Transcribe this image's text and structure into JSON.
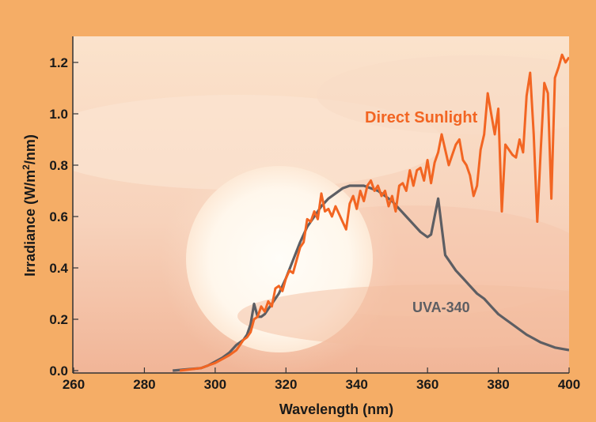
{
  "chart_data": {
    "type": "line",
    "title": "",
    "xlabel": "Wavelength (nm)",
    "ylabel_main": "Irradiance (W/m",
    "ylabel_sup": "2",
    "ylabel_tail": "/nm)",
    "xlim": [
      260,
      400
    ],
    "ylim": [
      0,
      1.3
    ],
    "x_ticks": [
      260,
      280,
      300,
      320,
      340,
      360,
      380,
      400
    ],
    "x_tick_labels": [
      "260",
      "280",
      "300",
      "320",
      "340",
      "360",
      "380",
      "400"
    ],
    "y_ticks": [
      0,
      0.2,
      0.4,
      0.6,
      0.8,
      1.0,
      1.2
    ],
    "y_tick_labels": [
      "0.0",
      "0.2",
      "0.4",
      "0.6",
      "0.8",
      "1.0",
      "1.2"
    ],
    "grid": false,
    "legend": "inline labels",
    "series": [
      {
        "name": "Direct Sunlight",
        "color": "#f26522",
        "x": [
          290,
          293,
          296,
          298,
          300,
          302,
          304,
          306,
          307,
          308,
          309,
          310,
          311,
          312,
          313,
          314,
          315,
          316,
          317,
          318,
          319,
          320,
          321,
          322,
          323,
          324,
          325,
          326,
          327,
          328,
          329,
          330,
          331,
          332,
          333,
          334,
          335,
          336,
          337,
          338,
          339,
          340,
          341,
          342,
          343,
          344,
          345,
          346,
          347,
          348,
          349,
          350,
          351,
          352,
          353,
          354,
          355,
          356,
          357,
          358,
          359,
          360,
          361,
          362,
          363,
          364,
          365,
          366,
          367,
          368,
          369,
          370,
          371,
          372,
          373,
          374,
          375,
          376,
          377,
          378,
          379,
          380,
          381,
          382,
          383,
          384,
          385,
          386,
          387,
          388,
          389,
          390,
          391,
          392,
          393,
          394,
          395,
          396,
          397,
          398,
          399,
          400
        ],
        "y": [
          0.0,
          0.005,
          0.01,
          0.02,
          0.03,
          0.045,
          0.06,
          0.08,
          0.1,
          0.12,
          0.13,
          0.15,
          0.2,
          0.21,
          0.25,
          0.23,
          0.27,
          0.25,
          0.32,
          0.33,
          0.31,
          0.36,
          0.39,
          0.38,
          0.43,
          0.48,
          0.5,
          0.59,
          0.58,
          0.62,
          0.59,
          0.69,
          0.62,
          0.63,
          0.6,
          0.64,
          0.61,
          0.58,
          0.55,
          0.65,
          0.68,
          0.63,
          0.7,
          0.66,
          0.72,
          0.74,
          0.7,
          0.72,
          0.68,
          0.7,
          0.64,
          0.68,
          0.62,
          0.72,
          0.73,
          0.7,
          0.78,
          0.72,
          0.78,
          0.79,
          0.74,
          0.82,
          0.73,
          0.81,
          0.85,
          0.92,
          0.86,
          0.8,
          0.84,
          0.88,
          0.9,
          0.82,
          0.8,
          0.76,
          0.68,
          0.72,
          0.86,
          0.92,
          1.08,
          1.0,
          0.92,
          1.02,
          0.62,
          0.88,
          0.86,
          0.84,
          0.83,
          0.9,
          0.85,
          1.07,
          1.16,
          0.92,
          0.58,
          0.86,
          1.12,
          1.08,
          0.67,
          1.14,
          1.18,
          1.23,
          1.2,
          1.22
        ]
      },
      {
        "name": "UVA-340",
        "color": "#5d5e63",
        "x": [
          288,
          292,
          296,
          298,
          300,
          302,
          304,
          306,
          308,
          309,
          310,
          311,
          312,
          313,
          314,
          315,
          316,
          318,
          320,
          322,
          324,
          326,
          328,
          330,
          332,
          334,
          336,
          338,
          340,
          342,
          344,
          346,
          348,
          350,
          352,
          354,
          356,
          358,
          360,
          361,
          362,
          363,
          364,
          365,
          366,
          368,
          370,
          372,
          374,
          376,
          378,
          380,
          382,
          384,
          386,
          388,
          390,
          392,
          394,
          396,
          398,
          400
        ],
        "y": [
          0.0,
          0.005,
          0.01,
          0.02,
          0.035,
          0.05,
          0.07,
          0.1,
          0.12,
          0.14,
          0.18,
          0.26,
          0.21,
          0.21,
          0.22,
          0.24,
          0.26,
          0.3,
          0.36,
          0.43,
          0.5,
          0.56,
          0.6,
          0.64,
          0.67,
          0.69,
          0.71,
          0.72,
          0.72,
          0.72,
          0.71,
          0.7,
          0.68,
          0.66,
          0.63,
          0.6,
          0.57,
          0.54,
          0.52,
          0.53,
          0.6,
          0.67,
          0.56,
          0.45,
          0.43,
          0.39,
          0.36,
          0.33,
          0.3,
          0.28,
          0.25,
          0.22,
          0.2,
          0.18,
          0.16,
          0.14,
          0.125,
          0.11,
          0.1,
          0.09,
          0.085,
          0.08
        ]
      }
    ]
  }
}
